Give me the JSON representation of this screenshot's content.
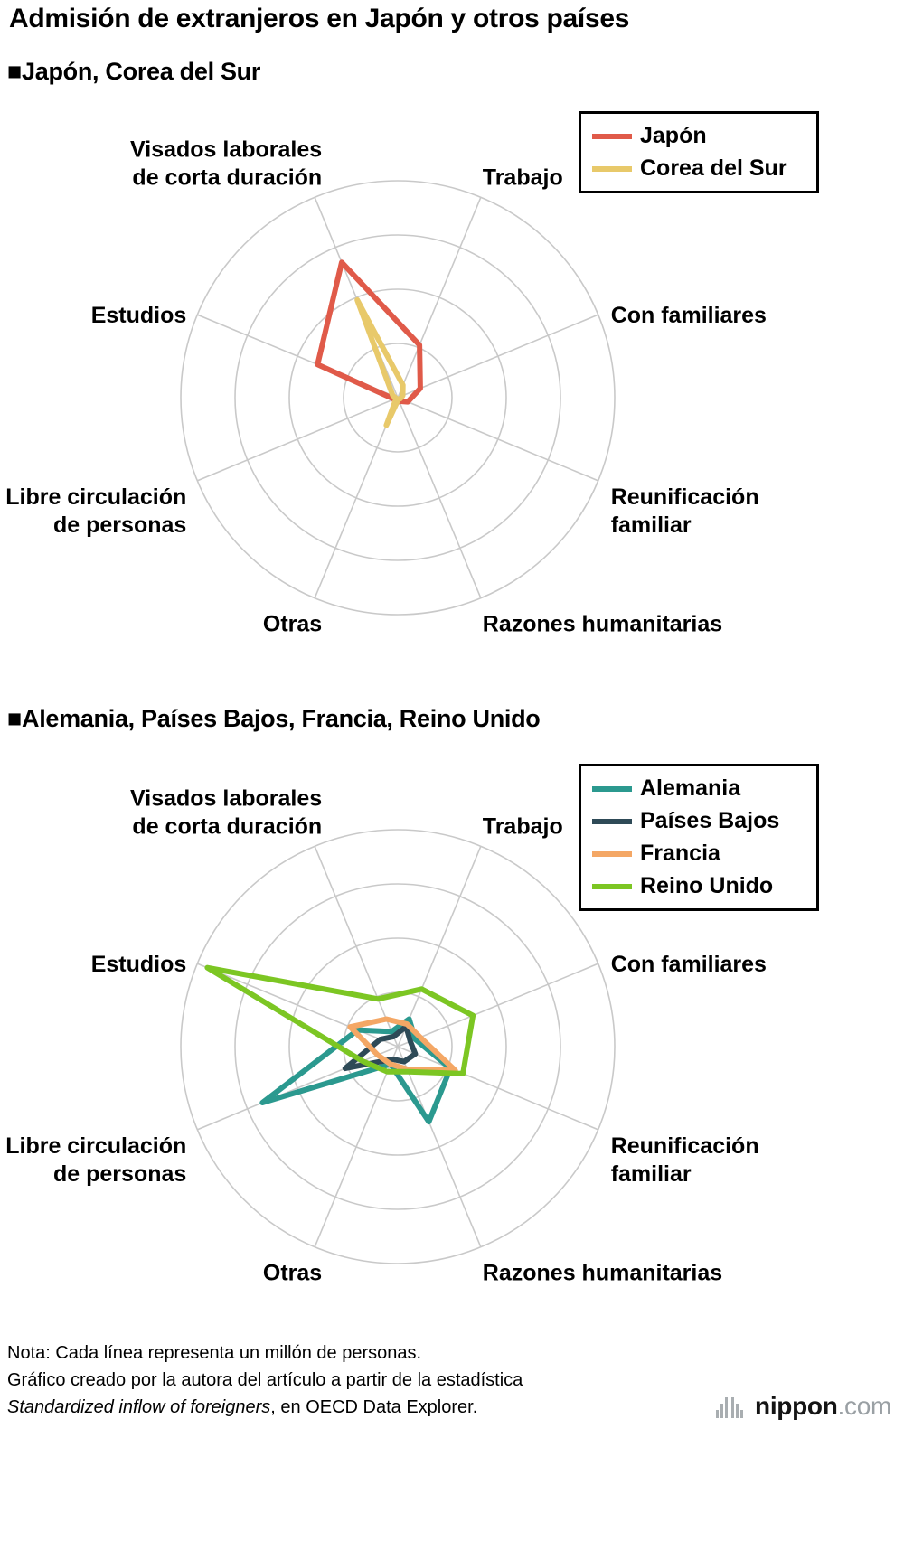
{
  "title": "Admisión de extranjeros en Japón y otros países",
  "sections": [
    {
      "heading": "■Japón, Corea del Sur"
    },
    {
      "heading": "■Alemania, Países Bajos, Francia, Reino Unido"
    }
  ],
  "chart_data": [
    {
      "type": "radar",
      "title": "Japón, Corea del Sur",
      "units": "millones de personas",
      "ring_note": "cada anillo = 1 millón de personas",
      "max": 4,
      "rings": 4,
      "grid": true,
      "legend_position": "top-right",
      "grid_color": "#c9c9c9",
      "axes": [
        {
          "label": "Trabajo",
          "lines": [
            "Trabajo"
          ],
          "angle": 67.5
        },
        {
          "label": "Con familiares",
          "lines": [
            "Con familiares"
          ],
          "angle": 22.5
        },
        {
          "label": "Reunificación familiar",
          "lines": [
            "Reunificación",
            "familiar"
          ],
          "angle": -22.5
        },
        {
          "label": "Razones humanitarias",
          "lines": [
            "Razones humanitarias"
          ],
          "angle": -67.5
        },
        {
          "label": "Otras",
          "lines": [
            "Otras"
          ],
          "angle": -112.5
        },
        {
          "label": "Libre circulación de personas",
          "lines": [
            "Libre circulación",
            "de personas"
          ],
          "angle": -157.5
        },
        {
          "label": "Estudios",
          "lines": [
            "Estudios"
          ],
          "angle": 157.5
        },
        {
          "label": "Visados laborales de corta duración",
          "lines": [
            "Visados laborales",
            "de corta duración"
          ],
          "angle": 112.5
        }
      ],
      "series": [
        {
          "name": "Japón",
          "color": "#e05a49",
          "values": [
            1.05,
            0.45,
            0.2,
            0.07,
            0.12,
            0.07,
            1.6,
            2.7
          ]
        },
        {
          "name": "Corea del Sur",
          "color": "#e8c96a",
          "values": [
            0.25,
            0.1,
            0.05,
            0.03,
            0.55,
            0.03,
            0.1,
            1.95
          ]
        }
      ]
    },
    {
      "type": "radar",
      "title": "Alemania, Países Bajos, Francia, Reino Unido",
      "units": "millones de personas",
      "ring_note": "cada anillo = 1 millón de personas",
      "max": 4,
      "rings": 4,
      "grid": true,
      "legend_position": "top-right",
      "grid_color": "#c9c9c9",
      "axes": [
        {
          "label": "Trabajo",
          "lines": [
            "Trabajo"
          ],
          "angle": 67.5
        },
        {
          "label": "Con familiares",
          "lines": [
            "Con familiares"
          ],
          "angle": 22.5
        },
        {
          "label": "Reunificación familiar",
          "lines": [
            "Reunificación",
            "familiar"
          ],
          "angle": -22.5
        },
        {
          "label": "Razones humanitarias",
          "lines": [
            "Razones humanitarias"
          ],
          "angle": -67.5
        },
        {
          "label": "Otras",
          "lines": [
            "Otras"
          ],
          "angle": -112.5
        },
        {
          "label": "Libre circulación de personas",
          "lines": [
            "Libre circulación",
            "de personas"
          ],
          "angle": -157.5
        },
        {
          "label": "Estudios",
          "lines": [
            "Estudios"
          ],
          "angle": 157.5
        },
        {
          "label": "Visados laborales de corta duración",
          "lines": [
            "Visados laborales",
            "de corta duración"
          ],
          "angle": 112.5
        }
      ],
      "series": [
        {
          "name": "Alemania",
          "color": "#2b998f",
          "values": [
            0.55,
            0.35,
            1.05,
            1.5,
            0.35,
            2.7,
            0.8,
            0.3
          ]
        },
        {
          "name": "Países Bajos",
          "color": "#2e4a57",
          "values": [
            0.4,
            0.25,
            0.35,
            0.3,
            0.25,
            1.05,
            0.35,
            0.2
          ]
        },
        {
          "name": "Francia",
          "color": "#f4a765",
          "values": [
            0.45,
            0.45,
            1.15,
            0.45,
            0.35,
            0.4,
            0.95,
            0.55
          ]
        },
        {
          "name": "Reino Unido",
          "color": "#7cc623",
          "values": [
            1.15,
            1.5,
            1.3,
            0.5,
            0.5,
            0.7,
            3.8,
            0.95
          ]
        }
      ]
    }
  ],
  "footer": {
    "note": "Nota: Cada línea representa un millón de personas.",
    "credit_line1": "Gráfico creado por la autora del artículo a partir de la estadística",
    "credit_italic": "Standardized inflow of foreigners",
    "credit_rest": ", en OECD Data Explorer."
  },
  "brand": {
    "name_bold": "nippon",
    "name_suffix": ".com",
    "icon": "signal-bars-icon",
    "icon_color": "#a9aeb1"
  }
}
